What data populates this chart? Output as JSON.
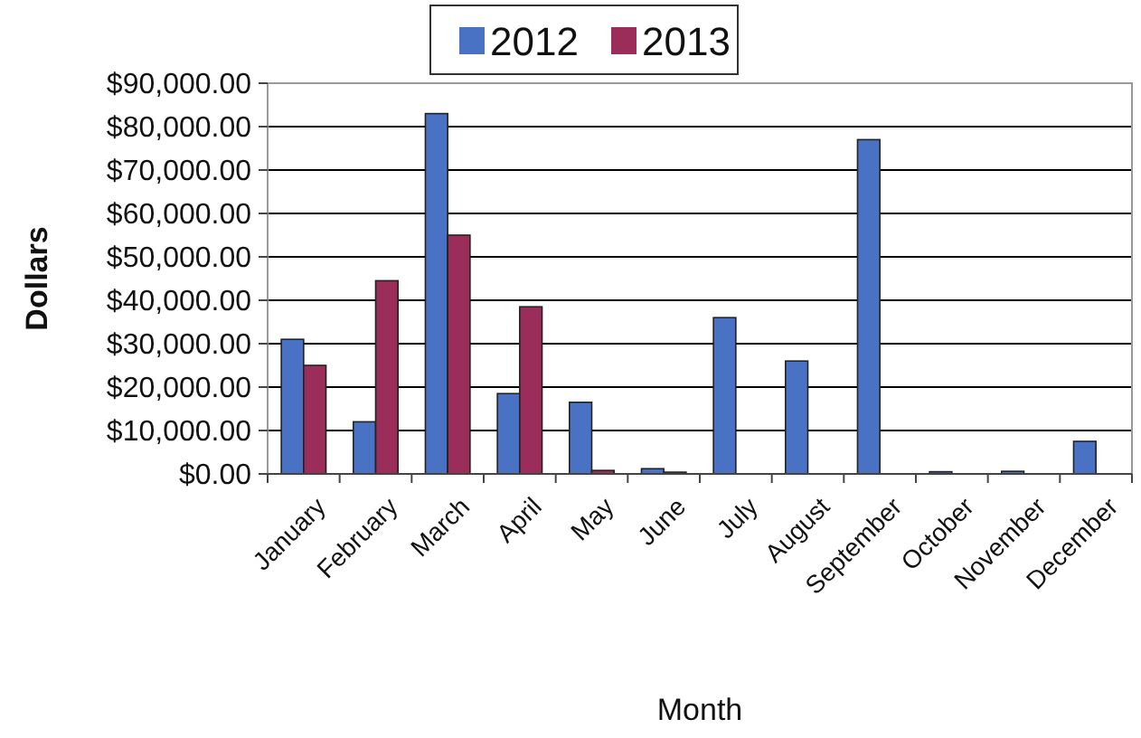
{
  "chart_data": {
    "type": "bar",
    "xlabel": "Month",
    "ylabel": "Dollars",
    "categories": [
      "January",
      "February",
      "March",
      "April",
      "May",
      "June",
      "July",
      "August",
      "September",
      "October",
      "November",
      "December"
    ],
    "series": [
      {
        "name": "2012",
        "color": "#4a72c4",
        "values": [
          31000,
          12000,
          83000,
          18500,
          16500,
          1200,
          36000,
          26000,
          77000,
          500,
          600,
          7500
        ]
      },
      {
        "name": "2013",
        "color": "#9b2d5a",
        "values": [
          25000,
          44500,
          55000,
          38500,
          800,
          400,
          null,
          null,
          null,
          null,
          null,
          null
        ]
      }
    ],
    "ylim": [
      0,
      90000
    ],
    "yticks": [
      {
        "value": 0,
        "label": "$0.00"
      },
      {
        "value": 10000,
        "label": "$10,000.00"
      },
      {
        "value": 20000,
        "label": "$20,000.00"
      },
      {
        "value": 30000,
        "label": "$30,000.00"
      },
      {
        "value": 40000,
        "label": "$40,000.00"
      },
      {
        "value": 50000,
        "label": "$50,000.00"
      },
      {
        "value": 60000,
        "label": "$60,000.00"
      },
      {
        "value": 70000,
        "label": "$70,000.00"
      },
      {
        "value": 80000,
        "label": "$80,000.00"
      },
      {
        "value": 90000,
        "label": "$90,000.00"
      }
    ],
    "grid": "y",
    "legend": "top"
  }
}
